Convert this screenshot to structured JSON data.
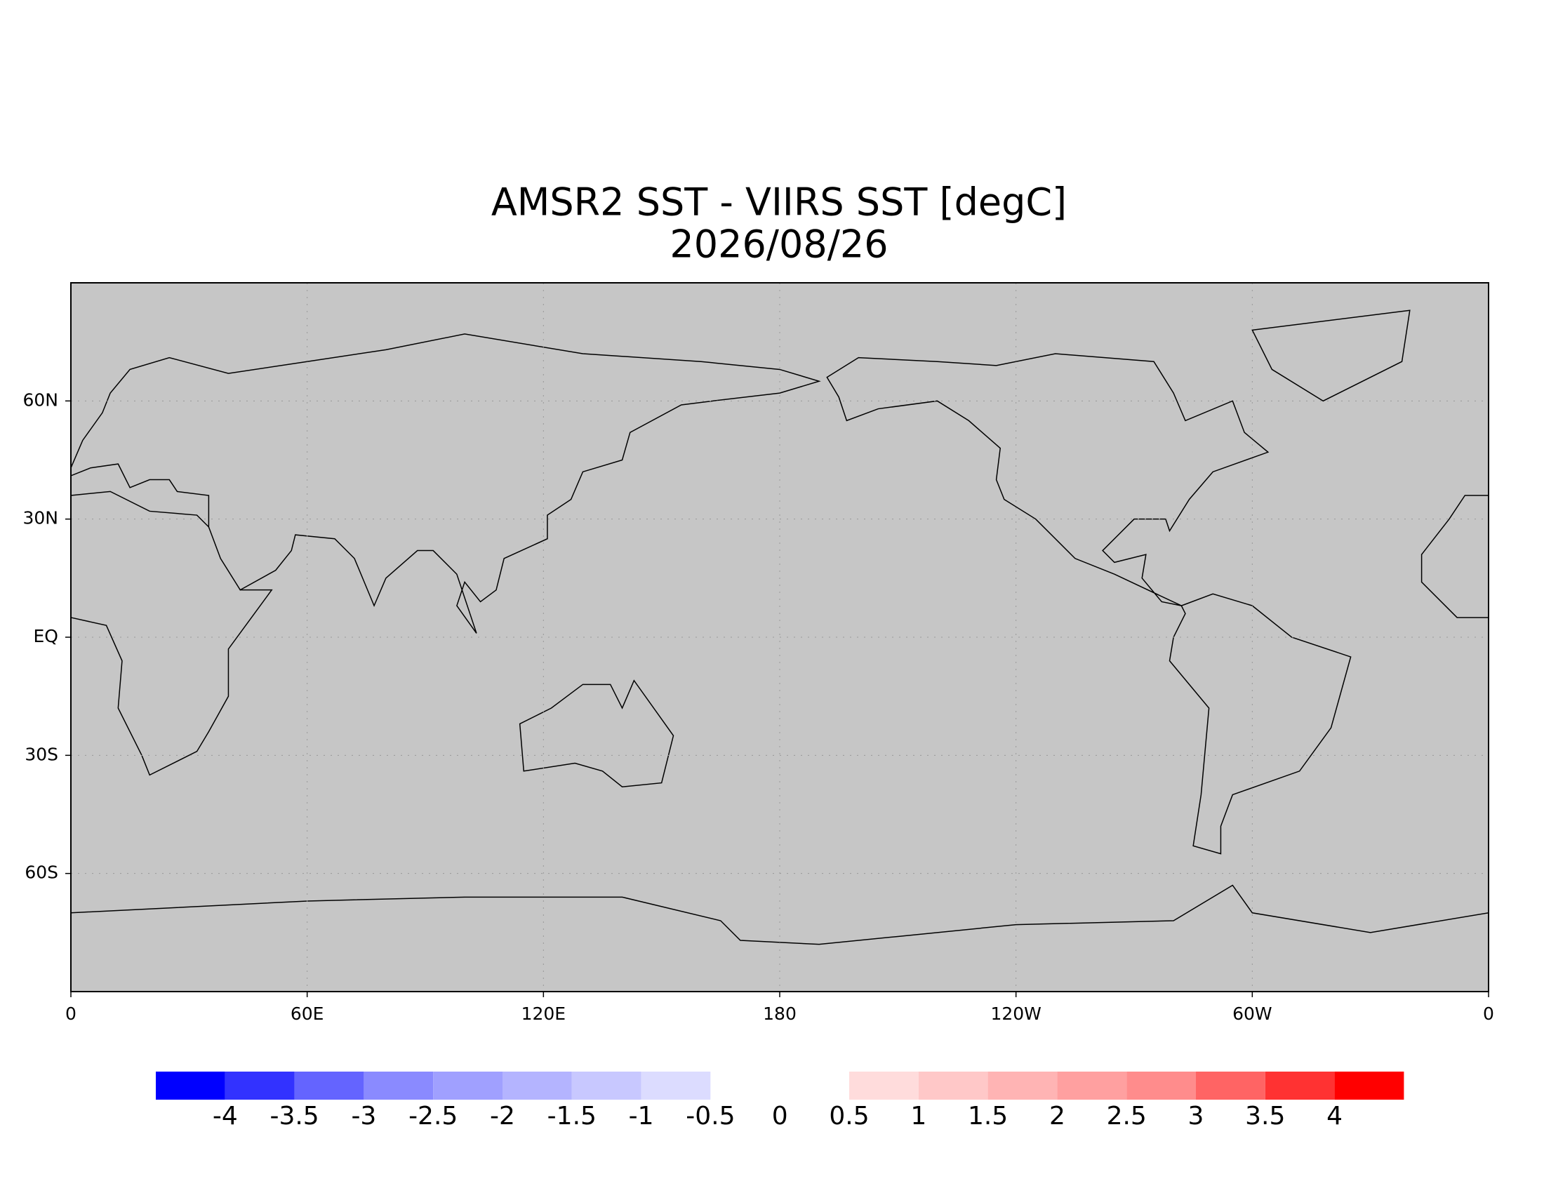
{
  "chart_data": {
    "type": "map",
    "title": "AMSR2 SST - VIIRS SST [degC]",
    "subtitle": "2026/08/26",
    "xlim": [
      0,
      360
    ],
    "ylim": [
      -90,
      90
    ],
    "xticks": [
      0,
      {
        "value": 60,
        "label": "60E"
      },
      {
        "value": 120,
        "label": "120E"
      },
      180,
      {
        "value": 240,
        "label": "120W"
      },
      {
        "value": 300,
        "label": "60W"
      },
      {
        "value": 360,
        "label": "0"
      }
    ],
    "yticks": [
      {
        "value": 60,
        "label": "60N"
      },
      {
        "value": 30,
        "label": "30N"
      },
      {
        "value": 0,
        "label": "EQ"
      },
      {
        "value": -30,
        "label": "30S"
      },
      {
        "value": -60,
        "label": "60S"
      }
    ],
    "grid": true,
    "colorbar": {
      "levels": [
        -4,
        -3.5,
        -3,
        -2.5,
        -2,
        -1.5,
        -1,
        -0.5,
        0,
        0.5,
        1,
        1.5,
        2,
        2.5,
        3,
        3.5,
        4
      ],
      "colors": [
        "#0000ff",
        "#3232ff",
        "#6464ff",
        "#8a8aff",
        "#a0a0ff",
        "#b4b4ff",
        "#c8c8ff",
        "#dcdcff",
        "#ffffff",
        "#ffffff",
        "#ffdcdc",
        "#ffc8c8",
        "#ffb4b4",
        "#ffa0a0",
        "#ff8c8c",
        "#ff6464",
        "#ff3232",
        "#ff0000"
      ]
    }
  }
}
